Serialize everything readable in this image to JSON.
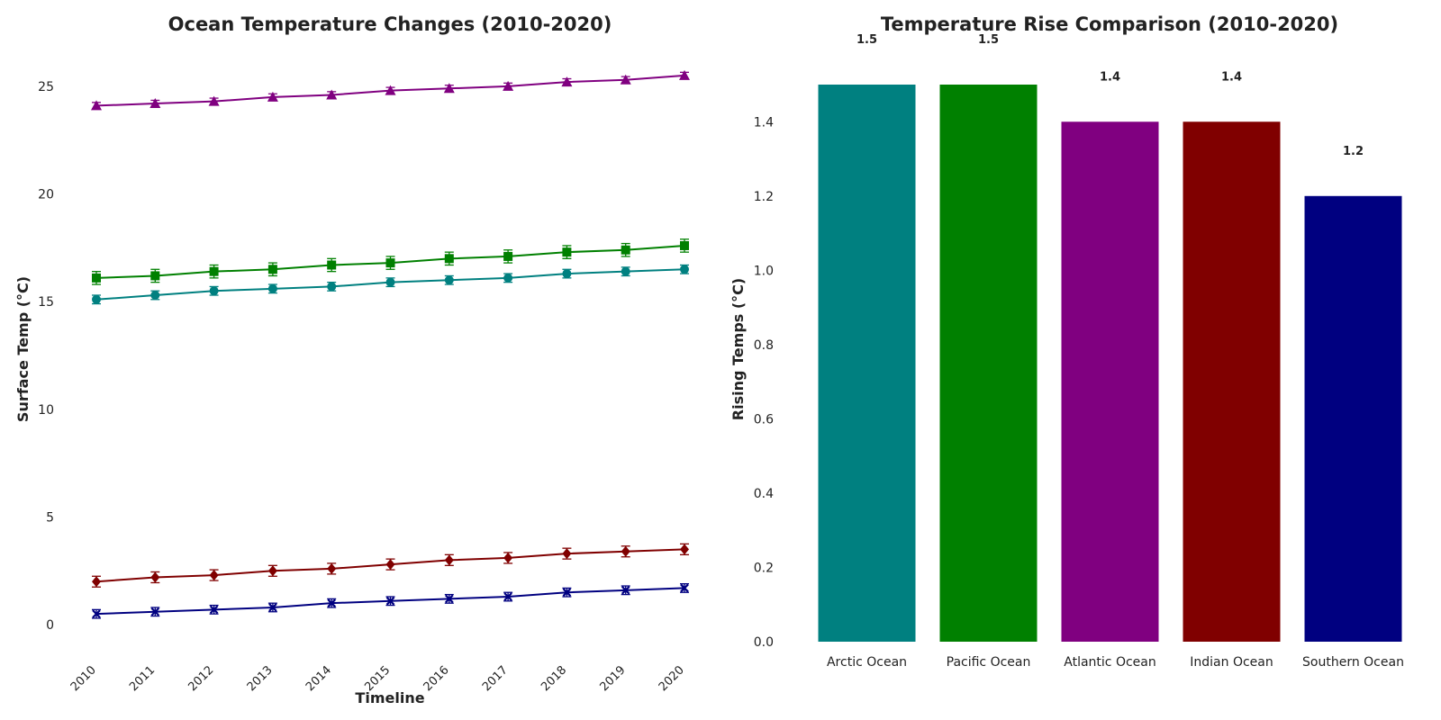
{
  "chart_data": [
    {
      "type": "line",
      "title": "Ocean Temperature Changes (2010-2020)",
      "xlabel": "Timeline",
      "ylabel": "Surface Temp (°C)",
      "x": [
        "2010",
        "2011",
        "2012",
        "2013",
        "2014",
        "2015",
        "2016",
        "2017",
        "2018",
        "2019",
        "2020"
      ],
      "ylim": [
        -1.5,
        26.5
      ],
      "yticks": [
        "0",
        "5",
        "10",
        "15",
        "20",
        "25"
      ],
      "error_bars": true,
      "grid": false,
      "series": [
        {
          "color": "#800080",
          "marker": "triangle",
          "values": [
            24.1,
            24.2,
            24.3,
            24.5,
            24.6,
            24.8,
            24.9,
            25.0,
            25.2,
            25.3,
            25.5
          ],
          "errors": [
            0.15,
            0.15,
            0.15,
            0.15,
            0.15,
            0.15,
            0.15,
            0.15,
            0.15,
            0.15,
            0.15
          ]
        },
        {
          "color": "#008000",
          "marker": "square",
          "values": [
            16.1,
            16.2,
            16.4,
            16.5,
            16.7,
            16.8,
            17.0,
            17.1,
            17.3,
            17.4,
            17.6
          ],
          "errors": [
            0.3,
            0.3,
            0.3,
            0.3,
            0.3,
            0.3,
            0.3,
            0.3,
            0.3,
            0.3,
            0.3
          ]
        },
        {
          "color": "#008080",
          "marker": "circle",
          "values": [
            15.1,
            15.3,
            15.5,
            15.6,
            15.7,
            15.9,
            16.0,
            16.1,
            16.3,
            16.4,
            16.5
          ],
          "errors": [
            0.2,
            0.2,
            0.2,
            0.2,
            0.2,
            0.2,
            0.2,
            0.2,
            0.2,
            0.2,
            0.2
          ]
        },
        {
          "color": "#800000",
          "marker": "diamond",
          "values": [
            2.0,
            2.2,
            2.3,
            2.5,
            2.6,
            2.8,
            3.0,
            3.1,
            3.3,
            3.4,
            3.5
          ],
          "errors": [
            0.25,
            0.25,
            0.25,
            0.25,
            0.25,
            0.25,
            0.25,
            0.25,
            0.25,
            0.25,
            0.25
          ]
        },
        {
          "color": "#000080",
          "marker": "x",
          "values": [
            0.5,
            0.6,
            0.7,
            0.8,
            1.0,
            1.1,
            1.2,
            1.3,
            1.5,
            1.6,
            1.7
          ],
          "errors": [
            0.2,
            0.2,
            0.2,
            0.2,
            0.2,
            0.2,
            0.2,
            0.2,
            0.2,
            0.2,
            0.2
          ]
        }
      ]
    },
    {
      "type": "bar",
      "title": "Temperature Rise Comparison (2010-2020)",
      "xlabel": "",
      "ylabel": "Rising Temps (°C)",
      "categories": [
        "Arctic Ocean",
        "Pacific Ocean",
        "Atlantic Ocean",
        "Indian Ocean",
        "Southern Ocean"
      ],
      "values": [
        1.5,
        1.5,
        1.4,
        1.4,
        1.2
      ],
      "value_labels": [
        "1.5",
        "1.5",
        "1.4",
        "1.4",
        "1.2"
      ],
      "colors": [
        "#008080",
        "#008000",
        "#800080",
        "#800000",
        "#000080"
      ],
      "ylim": [
        0,
        1.5
      ],
      "yticks": [
        "0.0",
        "0.2",
        "0.4",
        "0.6",
        "0.8",
        "1.0",
        "1.2",
        "1.4"
      ],
      "grid": false
    }
  ]
}
